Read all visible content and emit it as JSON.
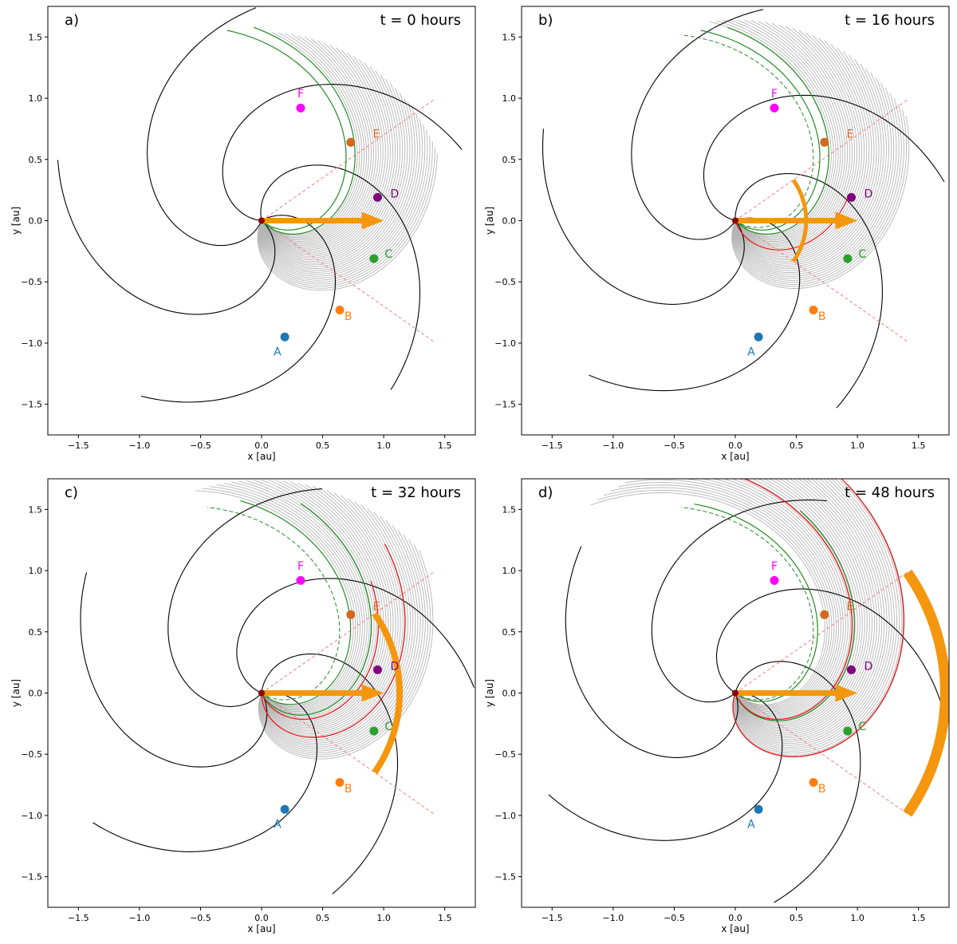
{
  "figure": {
    "xlabel": "x [au]",
    "ylabel": "y [au]",
    "xticks": [
      -1.5,
      -1.0,
      -0.5,
      0.0,
      0.5,
      1.0,
      1.5
    ],
    "yticks": [
      -1.5,
      -1.0,
      -0.5,
      0.0,
      0.5,
      1.0,
      1.5
    ],
    "xlim": [
      -1.75,
      1.75
    ],
    "ylim": [
      -1.75,
      1.75
    ]
  },
  "colors": {
    "spiral": "#000000",
    "field_lines": "#b5b5b5",
    "red_line": "#ee1111",
    "green_line": "#228b22",
    "orange": "#f5960f",
    "dashed_ray": "#f08080",
    "origin": "#8b0000"
  },
  "points": [
    {
      "name": "A",
      "x": 0.19,
      "y": -0.95,
      "color": "#1f77b4",
      "label_dx": -0.06,
      "label_dy": -0.12
    },
    {
      "name": "B",
      "x": 0.64,
      "y": -0.73,
      "color": "#ff7f0e",
      "label_dx": 0.07,
      "label_dy": -0.05
    },
    {
      "name": "C",
      "x": 0.92,
      "y": -0.31,
      "color": "#2ca02c",
      "label_dx": 0.12,
      "label_dy": 0.04
    },
    {
      "name": "D",
      "x": 0.95,
      "y": 0.19,
      "color": "#800080",
      "label_dx": 0.14,
      "label_dy": 0.03
    },
    {
      "name": "E",
      "x": 0.73,
      "y": 0.64,
      "color": "#d2691e",
      "label_dx": 0.21,
      "label_dy": 0.07
    },
    {
      "name": "F",
      "x": 0.32,
      "y": 0.92,
      "color": "#ff00ff",
      "label_dx": 0.0,
      "label_dy": 0.12
    }
  ],
  "chart_data": [
    {
      "type": "scatter",
      "panel_label": "a)",
      "time_label": "t = 0 hours",
      "xlabel": "x [au]",
      "ylabel": "y [au]",
      "xlim": [
        -1.75,
        1.75
      ],
      "ylim": [
        -1.75,
        1.75
      ],
      "spiral_phase_deg": 0,
      "ray_deg": 35,
      "orange_arc": null,
      "red_curves": [],
      "green_solid": [
        0,
        8
      ],
      "green_dashed": [],
      "fan_extent": 1.55
    },
    {
      "type": "scatter",
      "panel_label": "b)",
      "time_label": "t = 16 hours",
      "xlabel": "x [au]",
      "ylabel": "y [au]",
      "xlim": [
        -1.75,
        1.75
      ],
      "ylim": [
        -1.75,
        1.75
      ],
      "spiral_phase_deg": -9,
      "ray_deg": 35,
      "orange_arc": {
        "r": 0.58,
        "width": 5
      },
      "red_curves": [
        [
          22,
          0.95
        ]
      ],
      "green_solid": [
        0,
        8
      ],
      "green_dashed": [
        -6
      ],
      "fan_extent": 1.65
    },
    {
      "type": "scatter",
      "panel_label": "c)",
      "time_label": "t = 32 hours",
      "xlabel": "x [au]",
      "ylabel": "y [au]",
      "xlim": [
        -1.75,
        1.75
      ],
      "ylim": [
        -1.75,
        1.75
      ],
      "spiral_phase_deg": -18,
      "ray_deg": 35,
      "orange_arc": {
        "r": 1.13,
        "width": 8
      },
      "red_curves": [
        [
          40,
          1.6
        ],
        [
          18,
          1.3
        ]
      ],
      "green_solid": [
        22,
        4
      ],
      "green_dashed": [
        -6
      ],
      "fan_extent": 1.75
    },
    {
      "type": "scatter",
      "panel_label": "d)",
      "time_label": "t = 48 hours",
      "xlabel": "x [au]",
      "ylabel": "y [au]",
      "xlim": [
        -1.75,
        1.75
      ],
      "ylim": [
        -1.75,
        1.75
      ],
      "spiral_phase_deg": -27,
      "ray_deg": 35,
      "orange_arc": {
        "r": 1.72,
        "width": 13
      },
      "red_curves": [
        [
          60,
          2.1
        ],
        [
          18,
          1.9
        ]
      ],
      "green_solid": [
        30,
        -2
      ],
      "green_dashed": [
        -6
      ],
      "fan_extent": 1.95
    }
  ]
}
